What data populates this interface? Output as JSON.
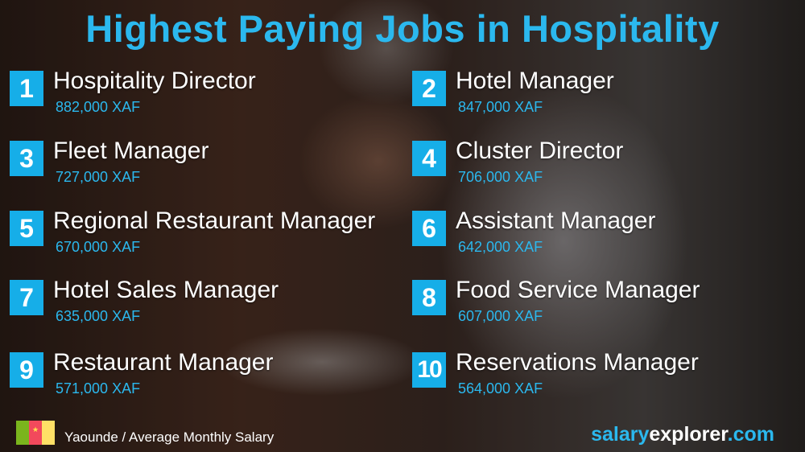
{
  "title": "Highest Paying Jobs in Hospitality",
  "jobs": [
    {
      "rank": "1",
      "name": "Hospitality Director",
      "salary": "882,000 XAF"
    },
    {
      "rank": "2",
      "name": "Hotel Manager",
      "salary": "847,000 XAF"
    },
    {
      "rank": "3",
      "name": "Fleet Manager",
      "salary": "727,000 XAF"
    },
    {
      "rank": "4",
      "name": "Cluster Director",
      "salary": "706,000 XAF"
    },
    {
      "rank": "5",
      "name": "Regional Restaurant Manager",
      "salary": "670,000 XAF"
    },
    {
      "rank": "6",
      "name": "Assistant Manager",
      "salary": "642,000 XAF"
    },
    {
      "rank": "7",
      "name": "Hotel Sales Manager",
      "salary": "635,000 XAF"
    },
    {
      "rank": "8",
      "name": "Food Service Manager",
      "salary": "607,000 XAF"
    },
    {
      "rank": "9",
      "name": "Restaurant Manager",
      "salary": "571,000 XAF"
    },
    {
      "rank": "10",
      "name": "Reservations Manager",
      "salary": "564,000 XAF"
    }
  ],
  "footer": {
    "location": "Yaounde / Average Monthly Salary",
    "flag_icon": "cameroon-flag",
    "flag_colors": [
      "#7ab51d",
      "#f2495c",
      "#ffe066"
    ],
    "brand_part1": "salary",
    "brand_part2": "explorer",
    "brand_part3": ".com"
  },
  "colors": {
    "accent": "#16aee8",
    "text": "#ffffff"
  }
}
